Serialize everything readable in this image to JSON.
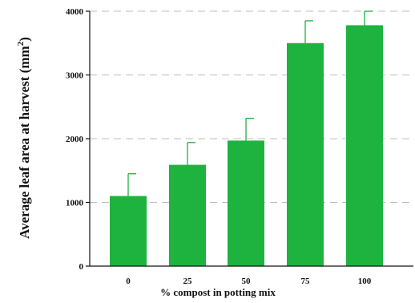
{
  "chart_data": {
    "type": "bar",
    "title": "",
    "xlabel": "% compost in potting mix",
    "ylabel": "Average leaf area at harvest (mm",
    "ylabel_sup": "2",
    "ylabel_end": ")",
    "categories": [
      "0",
      "25",
      "50",
      "75",
      "100"
    ],
    "values": [
      1100,
      1590,
      1970,
      3500,
      3780
    ],
    "error_upper": [
      350,
      350,
      350,
      350,
      220
    ],
    "ylim": [
      0,
      4000
    ],
    "yticks": [
      "0",
      "1000",
      "2000",
      "3000",
      "4000"
    ],
    "ytick_values": [
      0,
      1000,
      2000,
      3000,
      4000
    ],
    "grid": "horizontal dashed",
    "legend": "none",
    "bar_color": "#1db33e",
    "grid_color": "#bdbdbd"
  }
}
